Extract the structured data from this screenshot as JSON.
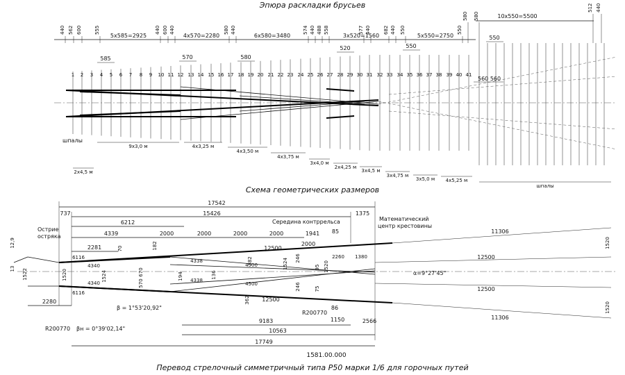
{
  "top": {
    "title": "Эпюра раскладки брусьев",
    "group_labels": [
      "5х585=2925",
      "4х570=2280",
      "6х580=3480",
      "3х520=1560",
      "5х550=2750",
      "10х550=5500"
    ],
    "spacing_labels": [
      "585",
      "570",
      "580",
      "520",
      "550",
      "550"
    ],
    "edge_dims": [
      "440",
      "562",
      "600",
      "555",
      "440",
      "600",
      "440",
      "580",
      "440",
      "574",
      "440",
      "488",
      "558",
      "577",
      "440",
      "682",
      "440",
      "550",
      "550",
      "580",
      "580",
      "512",
      "440"
    ],
    "tie_numbers": [
      "1",
      "2",
      "3",
      "4",
      "5",
      "6",
      "7",
      "8",
      "9",
      "10",
      "11",
      "12",
      "13",
      "14",
      "15",
      "16",
      "17",
      "18",
      "19",
      "20",
      "21",
      "22",
      "23",
      "24",
      "25",
      "26",
      "27",
      "28",
      "29",
      "30",
      "31",
      "32",
      "33",
      "34",
      "35",
      "36",
      "37",
      "38",
      "39",
      "40",
      "41"
    ],
    "small_dim": "560  560",
    "left_label": "шпалы",
    "right_label": "шпалы",
    "under_labels": [
      "2х4,5 м",
      "9х3,0 м",
      "4х3,25 м",
      "4х3,50 м",
      "4х3,75 м",
      "3х4,0 м",
      "2х4,25 м",
      "3х4,5 м",
      "3х4,75 м",
      "3х5,0 м",
      "4х5,25 м"
    ]
  },
  "bottom": {
    "title": "Схема геометрических размеров",
    "overall": "17542",
    "dims_top": [
      "737",
      "15426",
      "1375",
      "6212",
      "4339",
      "2000",
      "2000",
      "2000",
      "2000",
      "1941",
      "85",
      "2281",
      "12500",
      "2000",
      "11306"
    ],
    "dims_mid": [
      "4340",
      "4340",
      "6116",
      "6116",
      "4338",
      "4338",
      "4500",
      "4500",
      "2260",
      "1380",
      "12500",
      "12500",
      "1520",
      "1520",
      "1524",
      "1524",
      "1522",
      "12,9",
      "13"
    ],
    "small_vals": [
      "70",
      "182",
      "670",
      "570",
      "194",
      "382",
      "362",
      "95",
      "136",
      "246",
      "246",
      "75",
      "1520",
      "1520"
    ],
    "dims_bottom": [
      "2280",
      "9183",
      "10563",
      "17749",
      "1150",
      "2566",
      "86",
      "11306"
    ],
    "labels": {
      "point": "Острие\nостряка",
      "mid_frog": "Середина контррельса",
      "math_center_1": "Математический",
      "math_center_2": "центр крестовины",
      "alpha": "α=9°27'45\"",
      "beta": "β = 1°53'20,92\"",
      "beta_h": "βн = 0°39'02,14\"",
      "radius1": "R200770",
      "radius2": "R200770",
      "station": "1581.00.000"
    },
    "caption": "Перевод стрелочный симметричный типа Р50 марки 1/6 для горочных путей"
  }
}
